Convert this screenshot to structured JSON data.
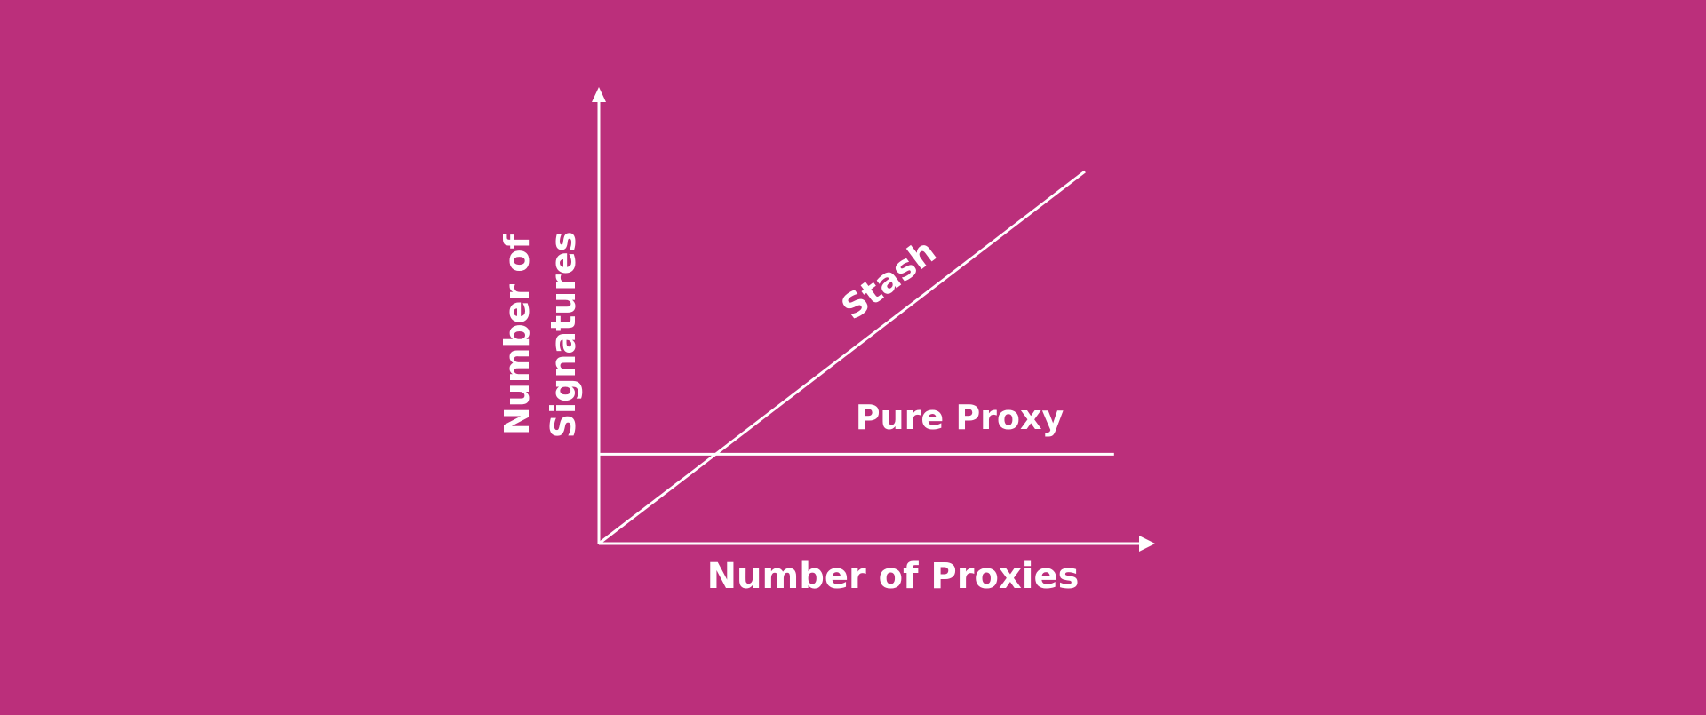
{
  "background_color": "#bb2f7b",
  "foreground_color": "#ffffff",
  "chart_data": {
    "type": "line",
    "title": "",
    "xlabel": "Number of Proxies",
    "ylabel_lines": [
      "Number of",
      "Signatures"
    ],
    "grid": false,
    "legend": "none",
    "axes": {
      "arrows": true,
      "tick_labels": false
    },
    "series": [
      {
        "name": "Stash",
        "x": [
          0,
          100
        ],
        "y": [
          0,
          100
        ]
      },
      {
        "name": "Pure Proxy",
        "x": [
          0,
          106
        ],
        "y": [
          24,
          24
        ]
      }
    ]
  }
}
